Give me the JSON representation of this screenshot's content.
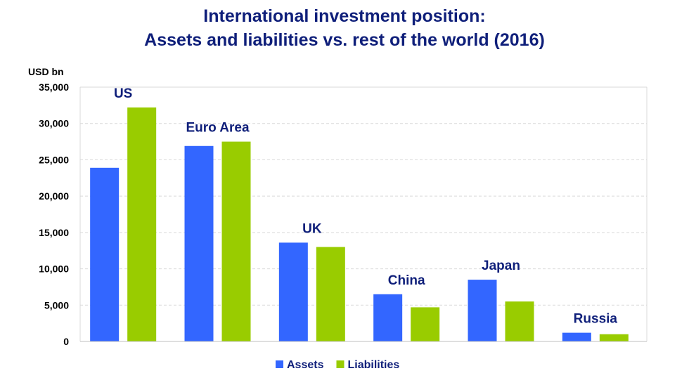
{
  "chart_data": {
    "type": "bar",
    "title": "International investment position:",
    "subtitle": "Assets and liabilities vs. rest of the world (2016)",
    "ylabel": "USD bn",
    "ylim": [
      0,
      35000
    ],
    "yticks": [
      0,
      5000,
      10000,
      15000,
      20000,
      25000,
      30000,
      35000
    ],
    "ytick_labels": [
      "0",
      "5,000",
      "10,000",
      "15,000",
      "20,000",
      "25,000",
      "30,000",
      "35,000"
    ],
    "categories": [
      "US",
      "Euro Area",
      "UK",
      "China",
      "Japan",
      "Russia"
    ],
    "series": [
      {
        "name": "Assets",
        "color": "#3366ff",
        "values": [
          23900,
          26900,
          13600,
          6500,
          8500,
          1200
        ]
      },
      {
        "name": "Liabilities",
        "color": "#99cc00",
        "values": [
          32200,
          27500,
          13000,
          4700,
          5500,
          1000
        ]
      }
    ],
    "grid": true,
    "grid_style": "dashed horizontal",
    "legend_position": "bottom-center"
  }
}
